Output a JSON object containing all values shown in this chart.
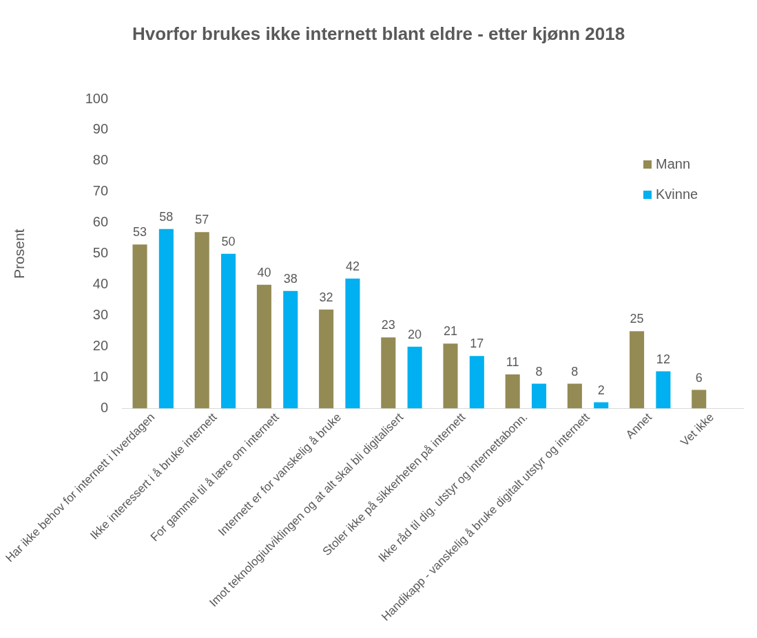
{
  "chart_data": {
    "type": "bar",
    "title": "Hvorfor brukes ikke internett blant eldre - etter kjønn 2018",
    "ylabel": "Prosent",
    "categories": [
      "Har ikke behov for internett i hverdagen",
      "Ikke interessert i å bruke internett",
      "For gammel til å lære om internett",
      "Internett er for vanskelig å bruke",
      "Imot teknologiutviklingen og at alt skal bli digitalisert",
      "Stoler ikke på sikkerheten på internett",
      "Ikke råd til dig. utstyr og internettabonn.",
      "Handikapp - vanskelig å bruke digitalt utstyr og internett",
      "Annet",
      "Vet ikke"
    ],
    "series": [
      {
        "name": "Mann",
        "color": "#948a54",
        "values": [
          53,
          57,
          40,
          32,
          23,
          21,
          11,
          8,
          25,
          6
        ]
      },
      {
        "name": "Kvinne",
        "color": "#00b0f0",
        "values": [
          58,
          50,
          38,
          42,
          20,
          17,
          8,
          2,
          12,
          null
        ]
      }
    ],
    "ylim": [
      0,
      100
    ],
    "yticks": [
      0,
      10,
      20,
      30,
      40,
      50,
      60,
      70,
      80,
      90,
      100
    ],
    "grid": false,
    "legend": "top right",
    "data_labels": true
  }
}
